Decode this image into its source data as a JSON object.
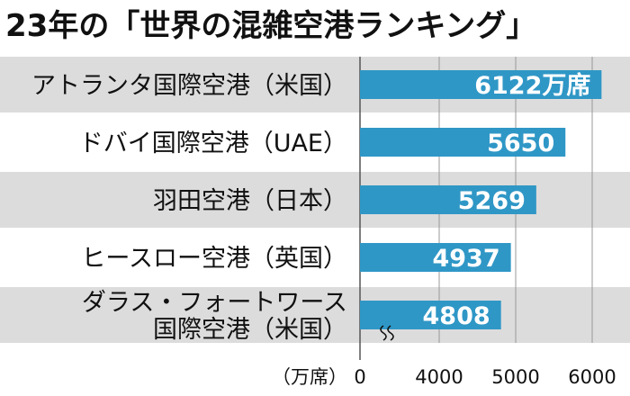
{
  "chart_data": {
    "type": "bar",
    "orientation": "horizontal",
    "title": "23年の「世界の混雑空港ランキング」",
    "categories": [
      [
        "アトランタ国際空港（米国）"
      ],
      [
        "ドバイ国際空港（UAE）"
      ],
      [
        "羽田空港（日本）"
      ],
      [
        "ヒースロー空港（英国）"
      ],
      [
        "ダラス・フォートワース",
        "国際空港（米国）"
      ]
    ],
    "values": [
      6122,
      5650,
      5269,
      4937,
      4808
    ],
    "value_labels": [
      "6122万席",
      "5650",
      "5269",
      "4937",
      "4808"
    ],
    "xlabel": "（万席）",
    "xticks": [
      0,
      4000,
      5000,
      6000
    ],
    "xtick_labels": [
      "0",
      "4000",
      "5000",
      "6000"
    ],
    "broken_axis": true,
    "grid": true,
    "colors": {
      "bar": "#2f97c6",
      "band": "#dcdcdc",
      "grid": "#999999"
    }
  }
}
